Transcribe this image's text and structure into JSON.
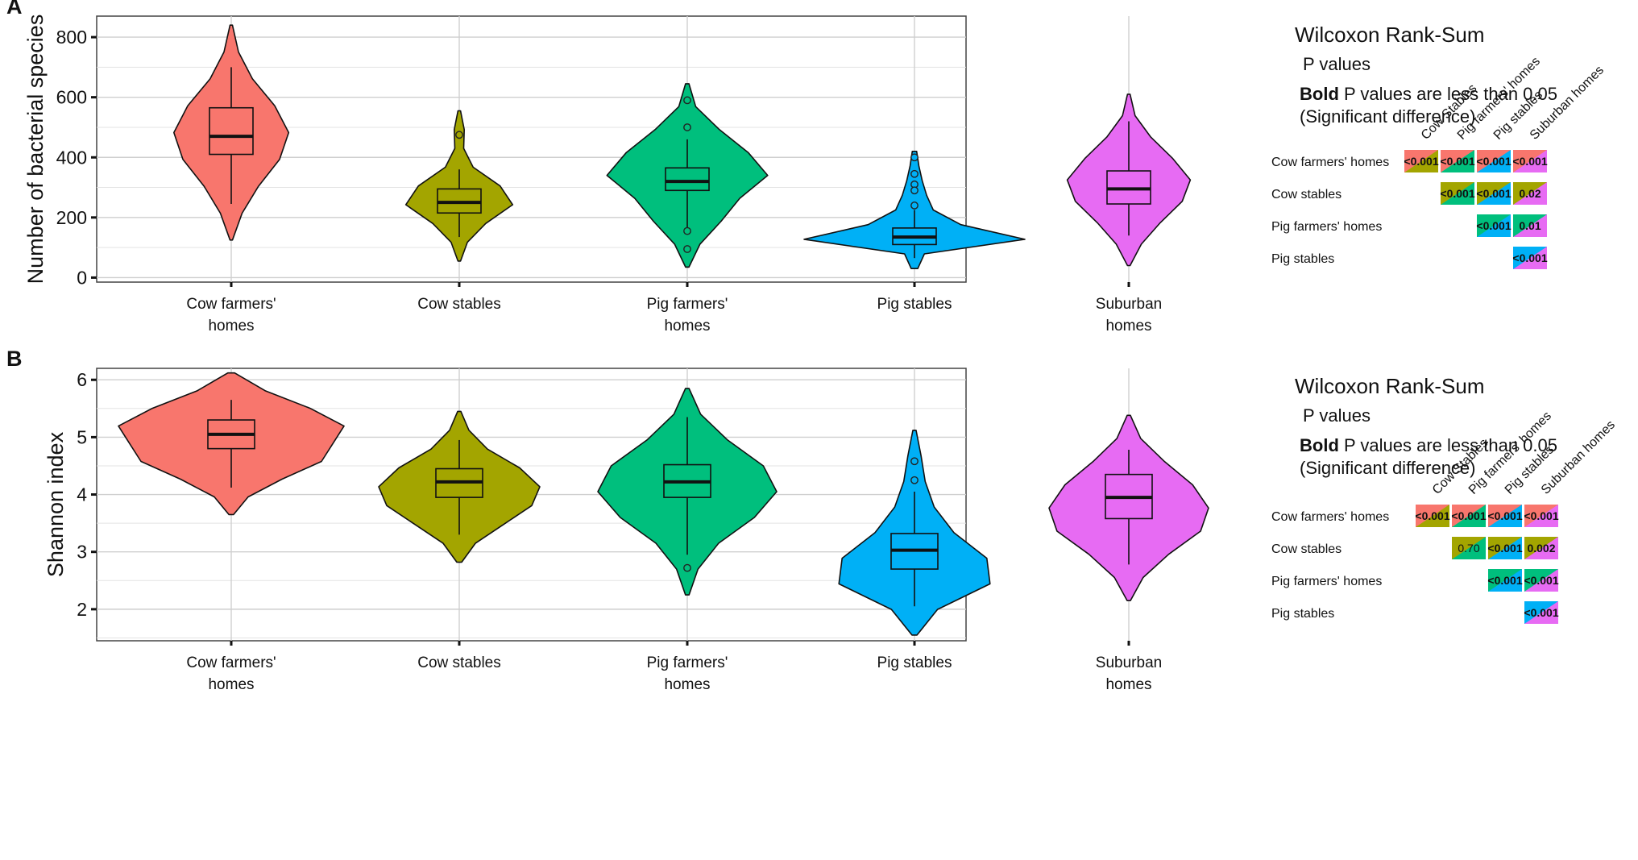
{
  "figure": {
    "groups": [
      "Cow farmers' homes",
      "Cow stables",
      "Pig farmers' homes",
      "Pig stables",
      "Suburban homes"
    ],
    "group_tick_labels": [
      [
        "Cow farmers'",
        "homes"
      ],
      [
        "Cow stables"
      ],
      [
        "Pig farmers'",
        "homes"
      ],
      [
        "Pig stables"
      ],
      [
        "Suburban",
        "homes"
      ]
    ],
    "colors": [
      "#F8766D",
      "#A3A500",
      "#00BF7D",
      "#00B0F6",
      "#E76BF3"
    ],
    "matrix_col_labels": [
      "Cow Stables",
      "Pig farmers' homes",
      "Pig stables",
      "Suburban homes"
    ],
    "matrix_row_labels": [
      "Cow farmers' homes",
      "Cow stables",
      "Pig farmers' homes",
      "Pig stables"
    ],
    "legend": {
      "title": "Wilcoxon Rank-Sum",
      "line1": "P values",
      "bold_word": "Bold",
      "line2_rest": " P values are less than 0.05",
      "line3": "(Significant difference)"
    }
  },
  "chart_data": [
    {
      "type": "violin",
      "panel_label": "A",
      "ylabel": "Number of bacterial species",
      "xlabel": "",
      "ylim": [
        -15,
        870
      ],
      "yticks": [
        0,
        200,
        400,
        600,
        800
      ],
      "grid": true,
      "box_stats": [
        {
          "group": "Cow farmers' homes",
          "whisker_low": 245,
          "q1": 410,
          "median": 470,
          "q3": 565,
          "whisker_high": 700,
          "outliers": []
        },
        {
          "group": "Cow stables",
          "whisker_low": 135,
          "q1": 215,
          "median": 250,
          "q3": 295,
          "whisker_high": 360,
          "outliers": [
            475
          ]
        },
        {
          "group": "Pig farmers' homes",
          "whisker_low": 165,
          "q1": 290,
          "median": 320,
          "q3": 365,
          "whisker_high": 460,
          "outliers": [
            590,
            500,
            155,
            95
          ]
        },
        {
          "group": "Pig stables",
          "whisker_low": 65,
          "q1": 110,
          "median": 135,
          "q3": 165,
          "whisker_high": 225,
          "outliers": [
            400,
            345,
            310,
            290,
            240
          ]
        },
        {
          "group": "Suburban homes",
          "whisker_low": 140,
          "q1": 245,
          "median": 295,
          "q3": 355,
          "whisker_high": 520,
          "outliers": []
        }
      ],
      "violin_range": [
        [
          125,
          840
        ],
        [
          55,
          555
        ],
        [
          35,
          645
        ],
        [
          30,
          420
        ],
        [
          40,
          610
        ]
      ],
      "p_values": [
        [
          "<0.001",
          "<0.001",
          "<0.001",
          "<0.001"
        ],
        [
          "",
          "<0.001",
          "<0.001",
          "0.02"
        ],
        [
          "",
          "",
          "<0.001",
          "0.01"
        ],
        [
          "",
          "",
          "",
          "<0.001"
        ]
      ]
    },
    {
      "type": "violin",
      "panel_label": "B",
      "ylabel": "Shannon index",
      "xlabel": "",
      "ylim": [
        1.45,
        6.2
      ],
      "yticks": [
        2,
        3,
        4,
        5,
        6
      ],
      "grid": true,
      "box_stats": [
        {
          "group": "Cow farmers' homes",
          "whisker_low": 4.12,
          "q1": 4.8,
          "median": 5.05,
          "q3": 5.3,
          "whisker_high": 5.65,
          "outliers": []
        },
        {
          "group": "Cow stables",
          "whisker_low": 3.3,
          "q1": 3.95,
          "median": 4.22,
          "q3": 4.45,
          "whisker_high": 4.95,
          "outliers": []
        },
        {
          "group": "Pig farmers' homes",
          "whisker_low": 2.95,
          "q1": 3.95,
          "median": 4.22,
          "q3": 4.52,
          "whisker_high": 5.35,
          "outliers": [
            2.72
          ]
        },
        {
          "group": "Pig stables",
          "whisker_low": 2.05,
          "q1": 2.7,
          "median": 3.03,
          "q3": 3.32,
          "whisker_high": 4.05,
          "outliers": [
            4.58,
            4.25
          ]
        },
        {
          "group": "Suburban homes",
          "whisker_low": 2.78,
          "q1": 3.58,
          "median": 3.95,
          "q3": 4.35,
          "whisker_high": 4.78,
          "outliers": []
        }
      ],
      "violin_range": [
        [
          3.65,
          6.12
        ],
        [
          2.82,
          5.45
        ],
        [
          2.25,
          5.85
        ],
        [
          1.55,
          5.12
        ],
        [
          2.15,
          5.38
        ]
      ],
      "p_values": [
        [
          "<0.001",
          "<0.001",
          "<0.001",
          "<0.001"
        ],
        [
          "",
          "0.70",
          "<0.001",
          "0.002"
        ],
        [
          "",
          "",
          "<0.001",
          "<0.001"
        ],
        [
          "",
          "",
          "",
          "<0.001"
        ]
      ]
    }
  ]
}
